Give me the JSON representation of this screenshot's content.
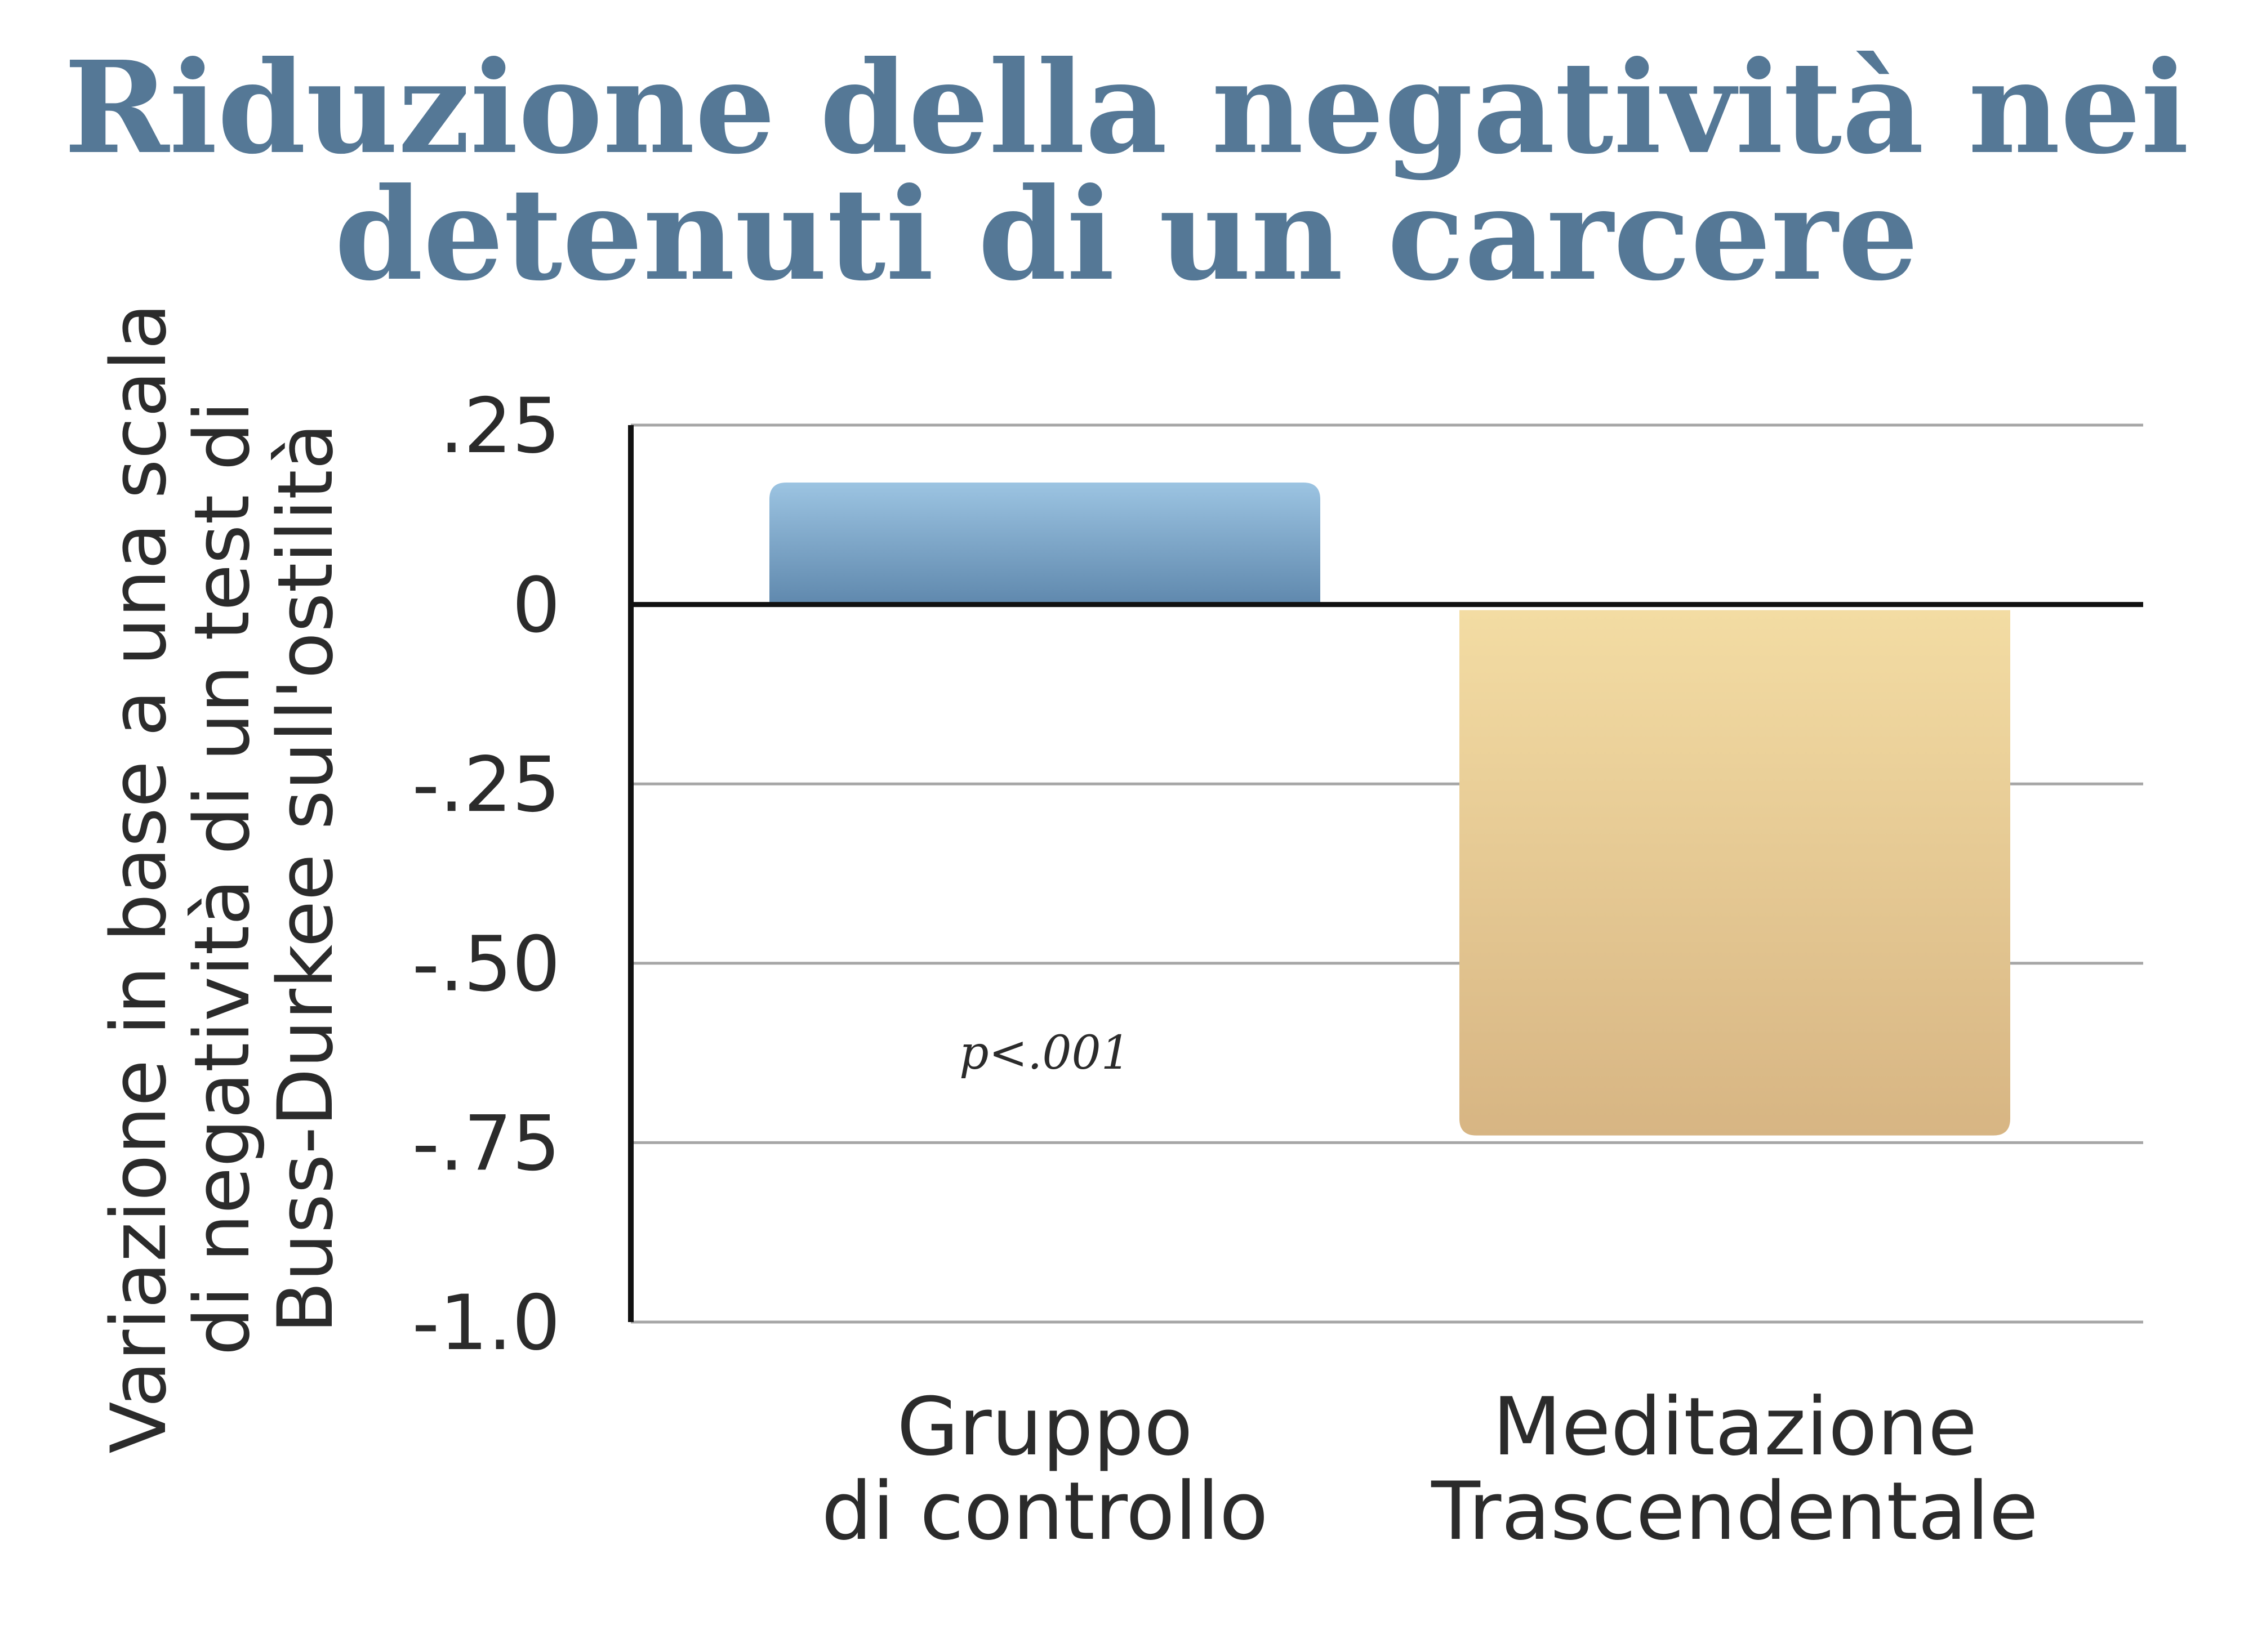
{
  "chart_data": {
    "type": "bar",
    "title": [
      "Riduzione della negatività nei",
      "detenuti di un carcere"
    ],
    "ylabel": [
      "Variazione in base a una scala",
      "di negatività di un test di",
      "Buss-Durkee sull'ostilità"
    ],
    "xlabel": "",
    "categories": [
      [
        "Gruppo",
        "di controllo"
      ],
      [
        "Meditazione",
        "Trascendentale"
      ]
    ],
    "values": [
      0.17,
      -0.74
    ],
    "ylim": [
      -1.0,
      0.25
    ],
    "yticks": [
      0.25,
      0,
      -0.25,
      -0.5,
      -0.75,
      -1.0
    ],
    "ytick_labels": [
      ".25",
      "0",
      "-.25",
      "-.50",
      "-.75",
      "-1.0"
    ],
    "annotation": "p<.001",
    "grid": true,
    "colors": {
      "title": "#557896",
      "text": "#2b2b2b",
      "axis": "#111111",
      "grid": "#a6a6a6",
      "bar_control_top": "#9cc4e2",
      "bar_control_bottom": "#5f88ad",
      "bar_tm_top": "#f3dca3",
      "bar_tm_bottom": "#d7b583"
    }
  }
}
